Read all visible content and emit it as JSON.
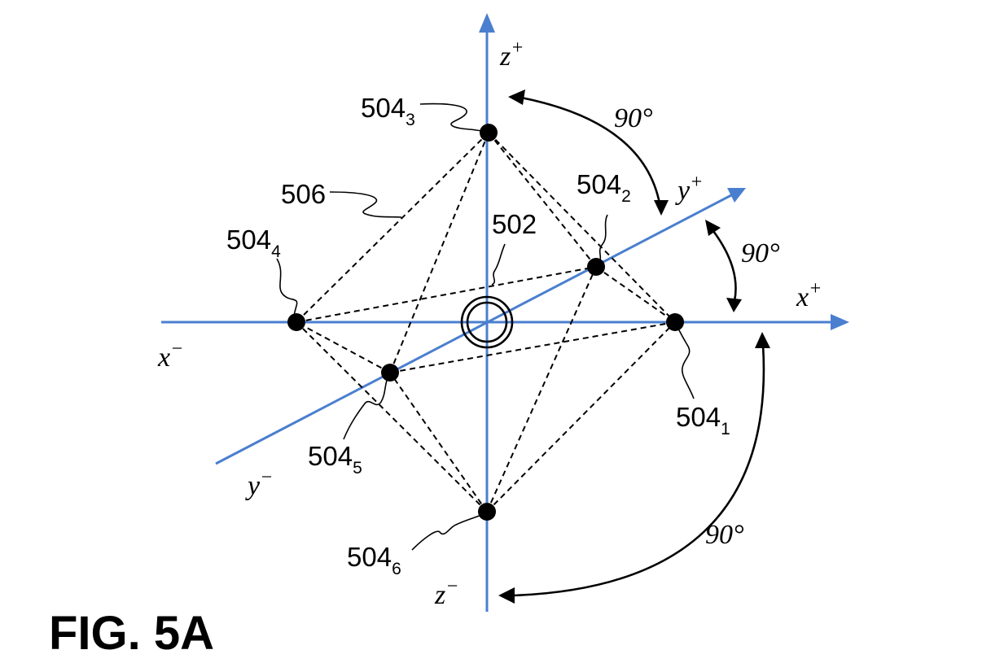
{
  "figure": {
    "title": "FIG. 5A",
    "axes": {
      "x_plus": {
        "letter": "x",
        "sign": "+"
      },
      "x_minus": {
        "letter": "x",
        "sign": "−"
      },
      "y_plus": {
        "letter": "y",
        "sign": "+"
      },
      "y_minus": {
        "letter": "y",
        "sign": "−"
      },
      "z_plus": {
        "letter": "z",
        "sign": "+"
      },
      "z_minus": {
        "letter": "z",
        "sign": "−"
      }
    },
    "angles": {
      "z_to_y": "90°",
      "y_to_x": "90°",
      "x_to_z_minus": "90°"
    },
    "refs": {
      "center": "502",
      "shape": "506",
      "v1": {
        "num": "504",
        "sub": "1"
      },
      "v2": {
        "num": "504",
        "sub": "2"
      },
      "v3": {
        "num": "504",
        "sub": "3"
      },
      "v4": {
        "num": "504",
        "sub": "4"
      },
      "v5": {
        "num": "504",
        "sub": "5"
      },
      "v6": {
        "num": "504",
        "sub": "6"
      }
    },
    "colors": {
      "axis": "#4a7fcf",
      "lines": "#000000"
    }
  }
}
